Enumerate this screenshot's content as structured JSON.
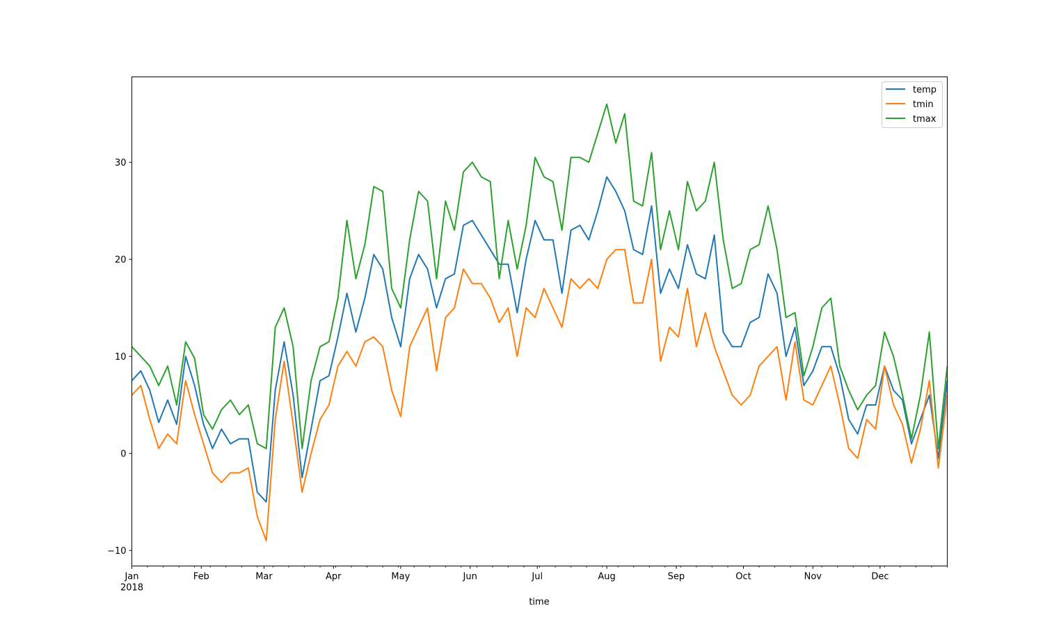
{
  "chart_data": {
    "type": "line",
    "title": "",
    "xlabel": "time",
    "ylabel": "",
    "ylim": [
      -11.6,
      38.8
    ],
    "xlim": [
      "2018-01-01",
      "2018-12-31"
    ],
    "yticks": [
      -10,
      0,
      10,
      20,
      30
    ],
    "xtick_labels": [
      "Jan",
      "Feb",
      "Mar",
      "Apr",
      "May",
      "Jun",
      "Jul",
      "Aug",
      "Sep",
      "Oct",
      "Nov",
      "Dec"
    ],
    "xtick_year": "2018",
    "grid": false,
    "legend": "top-right",
    "x": [
      "2018-01-01",
      "2018-01-05",
      "2018-01-09",
      "2018-01-13",
      "2018-01-17",
      "2018-01-21",
      "2018-01-25",
      "2018-01-29",
      "2018-02-02",
      "2018-02-06",
      "2018-02-10",
      "2018-02-14",
      "2018-02-18",
      "2018-02-22",
      "2018-02-26",
      "2018-03-02",
      "2018-03-06",
      "2018-03-10",
      "2018-03-14",
      "2018-03-18",
      "2018-03-22",
      "2018-03-26",
      "2018-03-30",
      "2018-04-03",
      "2018-04-07",
      "2018-04-11",
      "2018-04-15",
      "2018-04-19",
      "2018-04-23",
      "2018-04-27",
      "2018-05-01",
      "2018-05-05",
      "2018-05-09",
      "2018-05-13",
      "2018-05-17",
      "2018-05-21",
      "2018-05-25",
      "2018-05-29",
      "2018-06-02",
      "2018-06-06",
      "2018-06-10",
      "2018-06-14",
      "2018-06-18",
      "2018-06-22",
      "2018-06-26",
      "2018-06-30",
      "2018-07-04",
      "2018-07-08",
      "2018-07-12",
      "2018-07-16",
      "2018-07-20",
      "2018-07-24",
      "2018-07-28",
      "2018-08-01",
      "2018-08-05",
      "2018-08-09",
      "2018-08-13",
      "2018-08-17",
      "2018-08-21",
      "2018-08-25",
      "2018-08-29",
      "2018-09-02",
      "2018-09-06",
      "2018-09-10",
      "2018-09-14",
      "2018-09-18",
      "2018-09-22",
      "2018-09-26",
      "2018-09-30",
      "2018-10-04",
      "2018-10-08",
      "2018-10-12",
      "2018-10-16",
      "2018-10-20",
      "2018-10-24",
      "2018-10-28",
      "2018-11-01",
      "2018-11-05",
      "2018-11-09",
      "2018-11-13",
      "2018-11-17",
      "2018-11-21",
      "2018-11-25",
      "2018-11-29",
      "2018-12-03",
      "2018-12-07",
      "2018-12-11",
      "2018-12-15",
      "2018-12-19",
      "2018-12-23",
      "2018-12-27",
      "2018-12-31"
    ],
    "series": [
      {
        "name": "temp",
        "color": "#1f77b4",
        "values": [
          7.5,
          8.5,
          6.5,
          3.2,
          5.5,
          3,
          10,
          7,
          3,
          0.5,
          2.5,
          1,
          1.5,
          1.5,
          -4,
          -5,
          6.5,
          11.5,
          6,
          -2.5,
          2.5,
          7.5,
          8,
          12,
          16.5,
          12.5,
          16,
          20.5,
          19,
          14,
          11,
          18,
          20.5,
          19,
          15,
          18,
          18.5,
          23.5,
          24,
          22.5,
          21,
          19.5,
          19.5,
          14.5,
          20,
          24,
          22,
          22,
          16.5,
          23,
          23.5,
          22,
          25,
          28.5,
          27,
          25,
          21,
          20.5,
          25.5,
          16.5,
          19,
          17,
          21.5,
          18.5,
          18,
          22.5,
          12.5,
          11,
          11,
          13.5,
          14,
          18.5,
          16.5,
          10,
          13,
          7,
          8.5,
          11,
          11,
          8,
          3.5,
          2,
          5,
          5,
          9,
          6.5,
          5.5,
          1,
          3.5,
          6,
          -0.5,
          7.5
        ]
      },
      {
        "name": "tmin",
        "color": "#ff7f0e",
        "values": [
          6,
          7,
          3.5,
          0.5,
          2,
          1,
          7.5,
          4,
          1,
          -2,
          -3,
          -2,
          -2,
          -1.5,
          -6.5,
          -9,
          3.5,
          9.5,
          3,
          -4,
          0,
          3.5,
          5,
          9,
          10.5,
          9,
          11.5,
          12,
          11,
          6.5,
          3.8,
          11,
          13,
          15,
          8.5,
          14,
          15,
          19,
          17.5,
          17.5,
          16,
          13.5,
          15,
          10,
          15,
          14,
          17,
          15,
          13,
          18,
          17,
          18,
          17,
          20,
          21,
          21,
          15.5,
          15.5,
          20,
          9.5,
          13,
          12,
          17,
          11,
          14.5,
          11,
          8.5,
          6,
          5,
          6,
          9,
          10,
          11,
          5.5,
          11.5,
          5.5,
          5,
          7,
          9,
          5,
          0.5,
          -0.5,
          3.5,
          2.5,
          9,
          5,
          3,
          -1,
          2.5,
          7.5,
          -1.5,
          6
        ]
      },
      {
        "name": "tmax",
        "color": "#2ca02c",
        "values": [
          11,
          10,
          9,
          7,
          9,
          5,
          11.5,
          9.8,
          4,
          2.5,
          4.5,
          5.5,
          4,
          5,
          1,
          0.5,
          13,
          15,
          11,
          0.5,
          7.5,
          11,
          11.5,
          16,
          24,
          18,
          21.5,
          27.5,
          27,
          17,
          15,
          22,
          27,
          26,
          18,
          26,
          23,
          29,
          30,
          28.5,
          28,
          18,
          24,
          19,
          23.5,
          30.5,
          28.5,
          28,
          23,
          30.5,
          30.5,
          30,
          33,
          36,
          32,
          35,
          26,
          25.5,
          31,
          21,
          25,
          21,
          28,
          25,
          26,
          30,
          22,
          17,
          17.5,
          21,
          21.5,
          25.5,
          21,
          14,
          14.5,
          8,
          11,
          15,
          16,
          9,
          6.5,
          4.5,
          6,
          7,
          12.5,
          10,
          6,
          1.5,
          6,
          12.5,
          0.5,
          9
        ]
      }
    ]
  }
}
